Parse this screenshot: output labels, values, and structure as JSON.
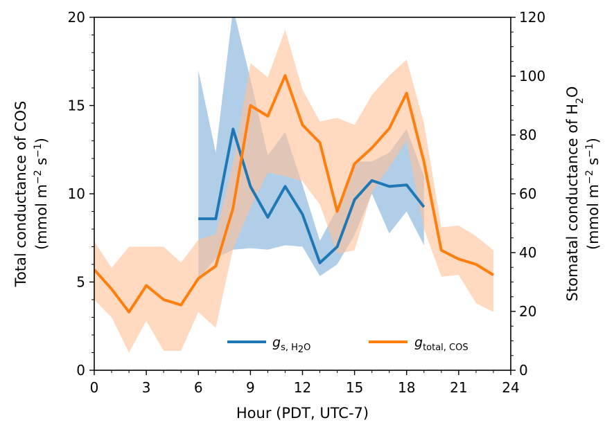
{
  "chart_data": {
    "type": "line",
    "xlabel": "Hour (PDT, UTC-7)",
    "ylabel_left_line1": "Total conductance of COS",
    "ylabel_left_line2_prefix": "(mmol m",
    "ylabel_left_line2_mid": " s",
    "ylabel_left_line2_suffix": ")",
    "ylabel_right_line1_prefix": "Stomatal conductance of H",
    "ylabel_right_line1_sub": "2",
    "ylabel_right_line1_suffix": "O",
    "ylabel_right_line2_prefix": "(mmol m",
    "ylabel_right_line2_mid": " s",
    "ylabel_right_line2_suffix": ")",
    "sup_m2": "−2",
    "sup_s1": "−1",
    "xlim": [
      0,
      24
    ],
    "ylim_left": [
      0,
      20
    ],
    "ylim_right": [
      0,
      120
    ],
    "x_ticks": [
      0,
      3,
      6,
      9,
      12,
      15,
      18,
      21,
      24
    ],
    "x_tick_labels": [
      "0",
      "3",
      "6",
      "9",
      "12",
      "15",
      "18",
      "21",
      "24"
    ],
    "y_left_ticks": [
      0,
      5,
      10,
      15,
      20
    ],
    "y_left_tick_labels": [
      "0",
      "5",
      "10",
      "15",
      "20"
    ],
    "y_right_ticks": [
      0,
      20,
      40,
      60,
      80,
      100,
      120
    ],
    "y_right_tick_labels": [
      "0",
      "20",
      "40",
      "60",
      "80",
      "100",
      "120"
    ],
    "grid": false,
    "legend_position": "bottom-center",
    "series": [
      {
        "name_main": "g",
        "name_sub": "s, H",
        "name_sub2": "2",
        "name_sub3": "O",
        "axis": "right",
        "color": "#1f77b4",
        "band_color": "#7fb0d9",
        "x": [
          6,
          7,
          8,
          9,
          10,
          11,
          12,
          13,
          14,
          15,
          16,
          17,
          18,
          19
        ],
        "y": [
          51.5,
          51.5,
          82,
          62.5,
          52,
          62.5,
          53,
          36.5,
          42,
          58,
          64.5,
          62.5,
          63,
          55.5
        ],
        "lower": [
          31,
          38,
          41,
          41.5,
          41,
          42.5,
          42,
          32,
          36,
          46,
          60,
          46.5,
          54,
          42.5
        ],
        "upper": [
          102,
          74,
          123,
          99,
          73,
          81,
          63,
          44,
          55,
          71,
          71,
          74,
          82,
          66
        ]
      },
      {
        "name_main": "g",
        "name_sub": "total, COS",
        "axis": "left",
        "color": "#ff7f0e",
        "band_color": "#ffc299",
        "x": [
          0,
          1,
          2,
          3,
          4,
          5,
          6,
          7,
          8,
          9,
          10,
          11,
          12,
          13,
          14,
          15,
          16,
          17,
          18,
          19,
          20,
          21,
          22,
          23
        ],
        "y": [
          5.7,
          4.6,
          3.3,
          4.8,
          4.0,
          3.7,
          5.2,
          5.9,
          9.2,
          15.0,
          14.4,
          16.7,
          13.9,
          12.9,
          9.0,
          11.7,
          12.6,
          13.7,
          15.7,
          11.8,
          6.8,
          6.3,
          6.0,
          5.4
        ],
        "lower": [
          4.0,
          3.0,
          1.0,
          2.8,
          1.1,
          1.1,
          3.3,
          2.4,
          6.9,
          9.2,
          11.2,
          11.0,
          10.7,
          9.4,
          6.6,
          6.8,
          10.1,
          11.5,
          13.0,
          8.0,
          5.3,
          5.4,
          3.8,
          3.3
        ],
        "upper": [
          7.3,
          5.8,
          7.0,
          7.0,
          7.0,
          6.1,
          7.4,
          7.7,
          11.7,
          17.4,
          16.6,
          19.3,
          15.9,
          14.1,
          14.3,
          13.9,
          15.6,
          16.7,
          17.6,
          14.0,
          8.1,
          8.2,
          7.6,
          6.8
        ]
      }
    ]
  }
}
